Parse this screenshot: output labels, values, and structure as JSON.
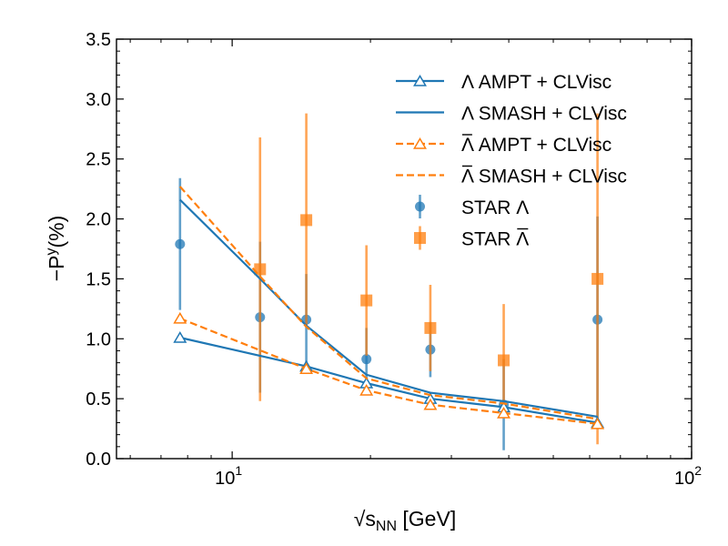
{
  "chart_data": {
    "type": "line",
    "xscale": "log",
    "xlim": [
      5.6,
      100
    ],
    "ylim": [
      0,
      3.5
    ],
    "xlabel": "√sNN [GeV]",
    "xlabel_parts": {
      "radical": "√",
      "s": "s",
      "sub": "NN",
      "unit": " [GeV]"
    },
    "ylabel": "−Pʸ(%)",
    "ylabel_parts": {
      "minus": "−P",
      "sup": "y",
      "rest": "(%)"
    },
    "x_major_ticks": [
      {
        "value": 10,
        "base": "10",
        "exp": "1"
      },
      {
        "value": 100,
        "base": "10",
        "exp": "2"
      }
    ],
    "y_ticks": [
      {
        "value": 0.0,
        "label": "0.0"
      },
      {
        "value": 0.5,
        "label": "0.5"
      },
      {
        "value": 1.0,
        "label": "1.0"
      },
      {
        "value": 1.5,
        "label": "1.5"
      },
      {
        "value": 2.0,
        "label": "2.0"
      },
      {
        "value": 2.5,
        "label": "2.5"
      },
      {
        "value": 3.0,
        "label": "3.0"
      },
      {
        "value": 3.5,
        "label": "3.5"
      }
    ],
    "legend_position": "top-right",
    "series": [
      {
        "name": "Λ AMPT + CLVisc",
        "color": "#1f77b4",
        "line_style": "solid",
        "marker": "open-triangle",
        "x": [
          7.7,
          14.5,
          19.6,
          27,
          39,
          62.4
        ],
        "y": [
          1.01,
          0.77,
          0.63,
          0.5,
          0.43,
          0.3
        ]
      },
      {
        "name": "Λ SMASH + CLVisc",
        "color": "#1f77b4",
        "line_style": "solid",
        "marker": "none",
        "x": [
          7.7,
          11.5,
          14.5,
          19.6,
          27,
          39,
          62.4
        ],
        "y": [
          2.16,
          1.5,
          1.11,
          0.7,
          0.55,
          0.48,
          0.35
        ]
      },
      {
        "name": "Λ̄ AMPT + CLVisc",
        "color": "#ff7f0e",
        "line_style": "dashed",
        "marker": "open-triangle",
        "x": [
          7.7,
          14.5,
          19.6,
          27,
          39,
          62.4
        ],
        "y": [
          1.17,
          0.75,
          0.57,
          0.45,
          0.38,
          0.29
        ]
      },
      {
        "name": "Λ̄ SMASH + CLVisc",
        "color": "#ff7f0e",
        "line_style": "dashed",
        "marker": "none",
        "x": [
          7.7,
          11.5,
          14.5,
          19.6,
          27,
          39,
          62.4
        ],
        "y": [
          2.27,
          1.52,
          1.1,
          0.67,
          0.53,
          0.46,
          0.33
        ]
      },
      {
        "name": "STAR Λ",
        "color": "#1f77b4",
        "line_style": "none",
        "marker": "circle",
        "x": [
          7.7,
          11.5,
          14.5,
          19.6,
          27,
          39,
          62.4
        ],
        "y": [
          1.79,
          1.18,
          1.16,
          0.83,
          0.91,
          0.45,
          1.16
        ],
        "yerr": [
          0.55,
          0.63,
          0.38,
          0.26,
          0.23,
          0.38,
          0.86
        ]
      },
      {
        "name": "STAR Λ̄",
        "color": "#ff7f0e",
        "line_style": "none",
        "marker": "square",
        "x": [
          11.5,
          14.5,
          19.6,
          27,
          39,
          62.4
        ],
        "y": [
          1.58,
          1.99,
          1.32,
          1.09,
          0.82,
          1.5
        ],
        "yerr": [
          1.1,
          0.89,
          0.46,
          0.36,
          0.47,
          1.38
        ]
      }
    ],
    "legend": [
      {
        "symbol": "Λ",
        "bar": false,
        "rest": " AMPT + CLVisc"
      },
      {
        "symbol": "Λ",
        "bar": false,
        "rest": " SMASH + CLVisc"
      },
      {
        "symbol": "Λ",
        "bar": true,
        "rest": " AMPT + CLVisc"
      },
      {
        "symbol": "Λ",
        "bar": true,
        "rest": " SMASH + CLVisc"
      },
      {
        "prefix": "STAR ",
        "symbol": "Λ",
        "bar": false,
        "rest": ""
      },
      {
        "prefix": "STAR ",
        "symbol": "Λ",
        "bar": true,
        "rest": ""
      }
    ]
  }
}
